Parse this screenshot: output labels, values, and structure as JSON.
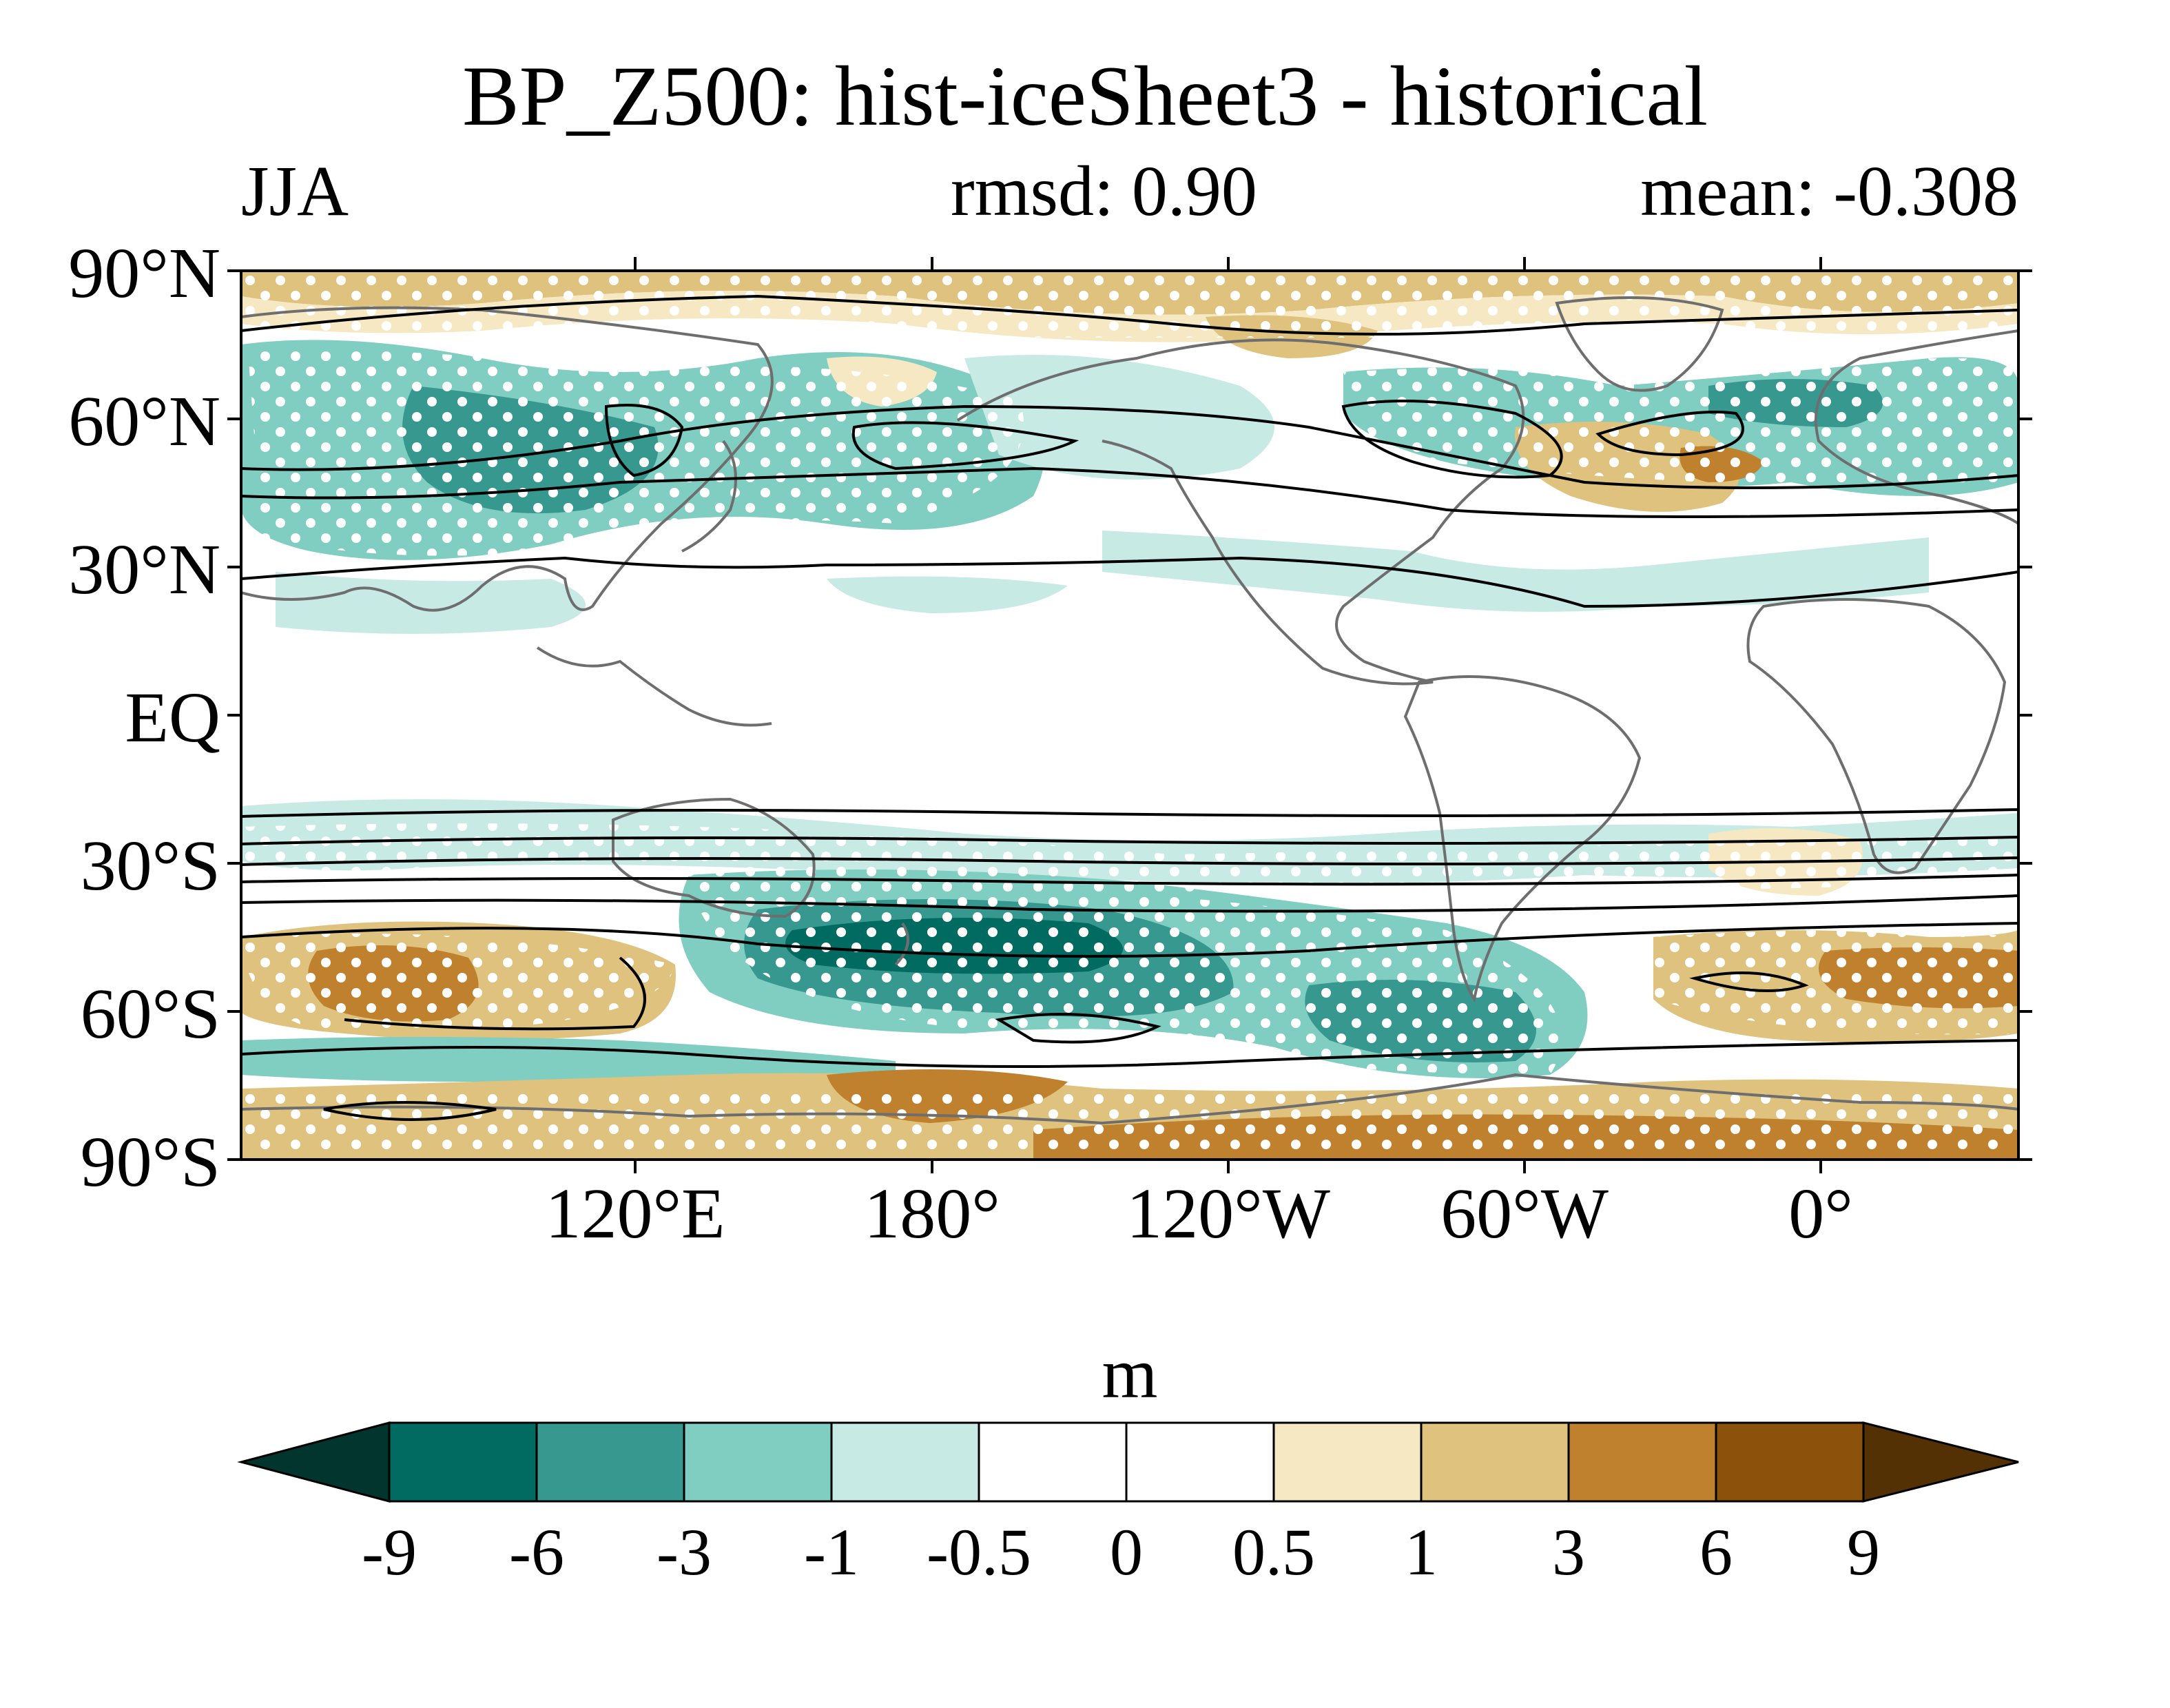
{
  "header": {
    "title": "BP_Z500: hist-iceSheet3 - historical",
    "season": "JJA",
    "rmsd": "rmsd: 0.90",
    "mean": "mean: -0.308"
  },
  "axes": {
    "lat_labels": [
      "90°N",
      "60°N",
      "30°N",
      "EQ",
      "30°S",
      "60°S",
      "90°S"
    ],
    "lon_labels": [
      "120°E",
      "180°",
      "120°W",
      "60°W",
      "0°"
    ]
  },
  "colorbar": {
    "units": "m",
    "levels": [
      "-9",
      "-6",
      "-3",
      "-1",
      "-0.5",
      "0",
      "0.5",
      "1",
      "3",
      "6",
      "9"
    ],
    "colors": [
      "#01352e",
      "#016a61",
      "#379890",
      "#80cdc1",
      "#c7eae5",
      "#ffffff",
      "#ffffff",
      "#f6e8c3",
      "#dfc27d",
      "#bf812d",
      "#8c510a",
      "#543005"
    ]
  },
  "map": {
    "projection": "cylindrical equidistant",
    "stippling": "white dots mark significant regions",
    "contours": "black lines"
  }
}
